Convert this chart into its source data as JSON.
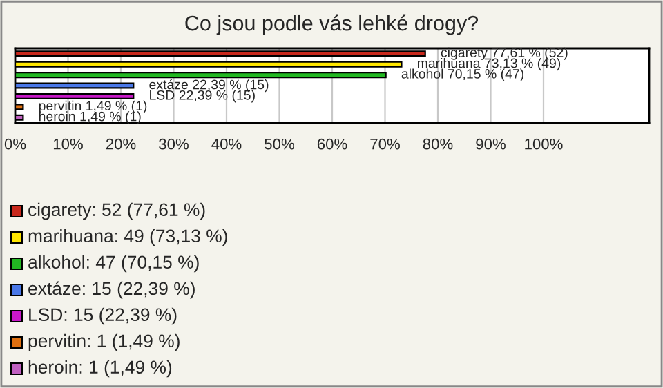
{
  "chart_data": {
    "type": "bar",
    "orientation": "horizontal",
    "title": "Co jsou podle vás lehké drogy?",
    "categories": [
      null,
      null,
      null,
      null,
      null,
      null,
      null
    ],
    "values": [
      77.61,
      73.13,
      70.15,
      22.39,
      22.39,
      1.49,
      1.49
    ],
    "colors": [
      "#c8281c",
      "#ffe600",
      "#22b822",
      "#4a78e8",
      "#c818c8",
      "#e07010",
      "#c060c0"
    ],
    "value_labels": [
      "cigarety 77,61 % (52)",
      "marihuana 73,13 % (49)",
      "alkohol 70,15 % (47)",
      "extáze 22,39 % (15)",
      "LSD 22,39 % (15)",
      "pervitin 1,49 % (1)",
      "heroin 1,49 % (1)"
    ],
    "xlim": [
      0,
      120
    ],
    "xticks": [
      {
        "value": 0,
        "label": "0%"
      },
      {
        "value": 10,
        "label": "10%"
      },
      {
        "value": 20,
        "label": "20%"
      },
      {
        "value": 30,
        "label": "30%"
      },
      {
        "value": 40,
        "label": "40%"
      },
      {
        "value": 50,
        "label": "50%"
      },
      {
        "value": 60,
        "label": "60%"
      },
      {
        "value": 70,
        "label": "70%"
      },
      {
        "value": 80,
        "label": "80%"
      },
      {
        "value": 90,
        "label": "90%"
      },
      {
        "value": 100,
        "label": "100%"
      }
    ],
    "grid": "x",
    "tick_labels": "x",
    "annotations": [
      "cigarety: 52 (77,61 %)",
      "marihuana: 49 (73,13 %)",
      "alkohol: 47 (70,15 %)",
      "extáze: 15 (22,39 %)",
      "LSD: 15 (22,39 %)",
      "pervitin: 1 (1,49 %)",
      "heroin: 1 (1,49 %)"
    ]
  }
}
